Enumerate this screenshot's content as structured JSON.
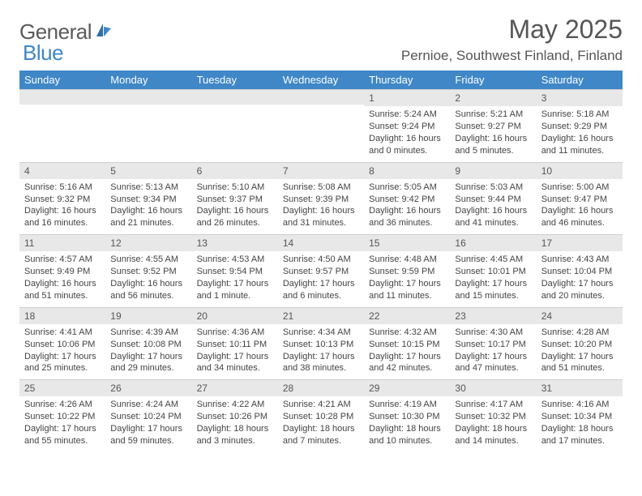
{
  "logo": {
    "word1": "General",
    "word2": "Blue"
  },
  "title": {
    "month": "May 2025",
    "location": "Pernioe, Southwest Finland, Finland"
  },
  "colors": {
    "header_bg": "#3F87C7",
    "daynum_bg": "#e8e8e8",
    "daynum_border": "#cfcfcf",
    "text": "#444",
    "title_text": "#555"
  },
  "weekdays": [
    "Sunday",
    "Monday",
    "Tuesday",
    "Wednesday",
    "Thursday",
    "Friday",
    "Saturday"
  ],
  "weeks": [
    [
      null,
      null,
      null,
      null,
      {
        "n": "1",
        "sr": "Sunrise: 5:24 AM",
        "ss": "Sunset: 9:24 PM",
        "d1": "Daylight: 16 hours",
        "d2": "and 0 minutes."
      },
      {
        "n": "2",
        "sr": "Sunrise: 5:21 AM",
        "ss": "Sunset: 9:27 PM",
        "d1": "Daylight: 16 hours",
        "d2": "and 5 minutes."
      },
      {
        "n": "3",
        "sr": "Sunrise: 5:18 AM",
        "ss": "Sunset: 9:29 PM",
        "d1": "Daylight: 16 hours",
        "d2": "and 11 minutes."
      }
    ],
    [
      {
        "n": "4",
        "sr": "Sunrise: 5:16 AM",
        "ss": "Sunset: 9:32 PM",
        "d1": "Daylight: 16 hours",
        "d2": "and 16 minutes."
      },
      {
        "n": "5",
        "sr": "Sunrise: 5:13 AM",
        "ss": "Sunset: 9:34 PM",
        "d1": "Daylight: 16 hours",
        "d2": "and 21 minutes."
      },
      {
        "n": "6",
        "sr": "Sunrise: 5:10 AM",
        "ss": "Sunset: 9:37 PM",
        "d1": "Daylight: 16 hours",
        "d2": "and 26 minutes."
      },
      {
        "n": "7",
        "sr": "Sunrise: 5:08 AM",
        "ss": "Sunset: 9:39 PM",
        "d1": "Daylight: 16 hours",
        "d2": "and 31 minutes."
      },
      {
        "n": "8",
        "sr": "Sunrise: 5:05 AM",
        "ss": "Sunset: 9:42 PM",
        "d1": "Daylight: 16 hours",
        "d2": "and 36 minutes."
      },
      {
        "n": "9",
        "sr": "Sunrise: 5:03 AM",
        "ss": "Sunset: 9:44 PM",
        "d1": "Daylight: 16 hours",
        "d2": "and 41 minutes."
      },
      {
        "n": "10",
        "sr": "Sunrise: 5:00 AM",
        "ss": "Sunset: 9:47 PM",
        "d1": "Daylight: 16 hours",
        "d2": "and 46 minutes."
      }
    ],
    [
      {
        "n": "11",
        "sr": "Sunrise: 4:57 AM",
        "ss": "Sunset: 9:49 PM",
        "d1": "Daylight: 16 hours",
        "d2": "and 51 minutes."
      },
      {
        "n": "12",
        "sr": "Sunrise: 4:55 AM",
        "ss": "Sunset: 9:52 PM",
        "d1": "Daylight: 16 hours",
        "d2": "and 56 minutes."
      },
      {
        "n": "13",
        "sr": "Sunrise: 4:53 AM",
        "ss": "Sunset: 9:54 PM",
        "d1": "Daylight: 17 hours",
        "d2": "and 1 minute."
      },
      {
        "n": "14",
        "sr": "Sunrise: 4:50 AM",
        "ss": "Sunset: 9:57 PM",
        "d1": "Daylight: 17 hours",
        "d2": "and 6 minutes."
      },
      {
        "n": "15",
        "sr": "Sunrise: 4:48 AM",
        "ss": "Sunset: 9:59 PM",
        "d1": "Daylight: 17 hours",
        "d2": "and 11 minutes."
      },
      {
        "n": "16",
        "sr": "Sunrise: 4:45 AM",
        "ss": "Sunset: 10:01 PM",
        "d1": "Daylight: 17 hours",
        "d2": "and 15 minutes."
      },
      {
        "n": "17",
        "sr": "Sunrise: 4:43 AM",
        "ss": "Sunset: 10:04 PM",
        "d1": "Daylight: 17 hours",
        "d2": "and 20 minutes."
      }
    ],
    [
      {
        "n": "18",
        "sr": "Sunrise: 4:41 AM",
        "ss": "Sunset: 10:06 PM",
        "d1": "Daylight: 17 hours",
        "d2": "and 25 minutes."
      },
      {
        "n": "19",
        "sr": "Sunrise: 4:39 AM",
        "ss": "Sunset: 10:08 PM",
        "d1": "Daylight: 17 hours",
        "d2": "and 29 minutes."
      },
      {
        "n": "20",
        "sr": "Sunrise: 4:36 AM",
        "ss": "Sunset: 10:11 PM",
        "d1": "Daylight: 17 hours",
        "d2": "and 34 minutes."
      },
      {
        "n": "21",
        "sr": "Sunrise: 4:34 AM",
        "ss": "Sunset: 10:13 PM",
        "d1": "Daylight: 17 hours",
        "d2": "and 38 minutes."
      },
      {
        "n": "22",
        "sr": "Sunrise: 4:32 AM",
        "ss": "Sunset: 10:15 PM",
        "d1": "Daylight: 17 hours",
        "d2": "and 42 minutes."
      },
      {
        "n": "23",
        "sr": "Sunrise: 4:30 AM",
        "ss": "Sunset: 10:17 PM",
        "d1": "Daylight: 17 hours",
        "d2": "and 47 minutes."
      },
      {
        "n": "24",
        "sr": "Sunrise: 4:28 AM",
        "ss": "Sunset: 10:20 PM",
        "d1": "Daylight: 17 hours",
        "d2": "and 51 minutes."
      }
    ],
    [
      {
        "n": "25",
        "sr": "Sunrise: 4:26 AM",
        "ss": "Sunset: 10:22 PM",
        "d1": "Daylight: 17 hours",
        "d2": "and 55 minutes."
      },
      {
        "n": "26",
        "sr": "Sunrise: 4:24 AM",
        "ss": "Sunset: 10:24 PM",
        "d1": "Daylight: 17 hours",
        "d2": "and 59 minutes."
      },
      {
        "n": "27",
        "sr": "Sunrise: 4:22 AM",
        "ss": "Sunset: 10:26 PM",
        "d1": "Daylight: 18 hours",
        "d2": "and 3 minutes."
      },
      {
        "n": "28",
        "sr": "Sunrise: 4:21 AM",
        "ss": "Sunset: 10:28 PM",
        "d1": "Daylight: 18 hours",
        "d2": "and 7 minutes."
      },
      {
        "n": "29",
        "sr": "Sunrise: 4:19 AM",
        "ss": "Sunset: 10:30 PM",
        "d1": "Daylight: 18 hours",
        "d2": "and 10 minutes."
      },
      {
        "n": "30",
        "sr": "Sunrise: 4:17 AM",
        "ss": "Sunset: 10:32 PM",
        "d1": "Daylight: 18 hours",
        "d2": "and 14 minutes."
      },
      {
        "n": "31",
        "sr": "Sunrise: 4:16 AM",
        "ss": "Sunset: 10:34 PM",
        "d1": "Daylight: 18 hours",
        "d2": "and 17 minutes."
      }
    ]
  ]
}
